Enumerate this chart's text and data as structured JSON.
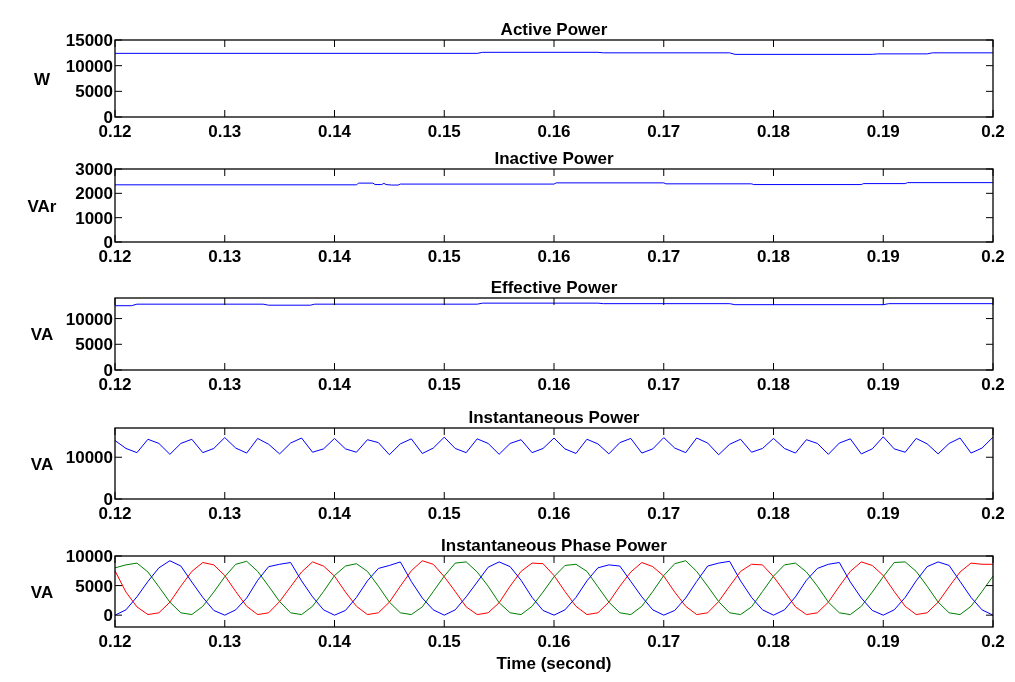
{
  "chart_data": [
    {
      "type": "line",
      "title": "Active Power",
      "ylabel": "W",
      "xlim": [
        0.12,
        0.2
      ],
      "xticks": [
        0.12,
        0.13,
        0.14,
        0.15,
        0.16,
        0.17,
        0.18,
        0.19,
        0.2
      ],
      "ylim": [
        0,
        15000
      ],
      "yticks": [
        0,
        5000,
        10000,
        15000
      ],
      "grid": false,
      "series": [
        {
          "color": "#0000ff",
          "x": [
            0.12,
            0.153,
            0.1535,
            0.164,
            0.1645,
            0.176,
            0.1765,
            0.189,
            0.1895,
            0.194,
            0.1945,
            0.2
          ],
          "values": [
            12400,
            12400,
            12600,
            12600,
            12500,
            12500,
            12200,
            12200,
            12300,
            12300,
            12500,
            12500
          ]
        }
      ]
    },
    {
      "type": "line",
      "title": "Inactive Power",
      "ylabel": "VAr",
      "xlim": [
        0.12,
        0.2
      ],
      "xticks": [
        0.12,
        0.13,
        0.14,
        0.15,
        0.16,
        0.17,
        0.18,
        0.19,
        0.2
      ],
      "ylim": [
        0,
        3000
      ],
      "yticks": [
        0,
        1000,
        2000,
        3000
      ],
      "grid": false,
      "series": [
        {
          "color": "#0000ff",
          "x": [
            0.12,
            0.142,
            0.1422,
            0.1435,
            0.1437,
            0.1443,
            0.1445,
            0.1447,
            0.1452,
            0.1458,
            0.146,
            0.16,
            0.1602,
            0.17,
            0.1702,
            0.178,
            0.1782,
            0.188,
            0.1882,
            0.192,
            0.1922,
            0.2
          ],
          "values": [
            2350,
            2350,
            2420,
            2420,
            2360,
            2360,
            2410,
            2360,
            2340,
            2340,
            2380,
            2380,
            2430,
            2430,
            2390,
            2390,
            2360,
            2360,
            2400,
            2400,
            2440,
            2440
          ]
        }
      ]
    },
    {
      "type": "line",
      "title": "Effective Power",
      "ylabel": "VA",
      "xlim": [
        0.12,
        0.2
      ],
      "xticks": [
        0.12,
        0.13,
        0.14,
        0.15,
        0.16,
        0.17,
        0.18,
        0.19,
        0.2
      ],
      "ylim": [
        0,
        14000
      ],
      "yticks": [
        0,
        5000,
        10000
      ],
      "grid": false,
      "series": [
        {
          "color": "#0000ff",
          "x": [
            0.12,
            0.1215,
            0.122,
            0.1335,
            0.134,
            0.1378,
            0.1382,
            0.153,
            0.1535,
            0.164,
            0.1645,
            0.176,
            0.1765,
            0.19,
            0.1905,
            0.2
          ],
          "values": [
            12500,
            12500,
            12800,
            12800,
            12600,
            12600,
            12800,
            12800,
            13000,
            13000,
            12900,
            12900,
            12700,
            12700,
            12900,
            12900
          ]
        }
      ]
    },
    {
      "type": "line",
      "title": "Instantaneous Power",
      "ylabel": "VA",
      "xlim": [
        0.12,
        0.2
      ],
      "xticks": [
        0.12,
        0.13,
        0.14,
        0.15,
        0.16,
        0.17,
        0.18,
        0.19,
        0.2
      ],
      "ylim": [
        0,
        17000
      ],
      "yticks": [
        0,
        10000
      ],
      "grid": false,
      "x": [
        0.12,
        0.121,
        0.122,
        0.123,
        0.124,
        0.125,
        0.126,
        0.127,
        0.128,
        0.129,
        0.13,
        0.131,
        0.132,
        0.133,
        0.134,
        0.135,
        0.136,
        0.137,
        0.138,
        0.139,
        0.14,
        0.141,
        0.142,
        0.143,
        0.144,
        0.145,
        0.146,
        0.147,
        0.148,
        0.149,
        0.15,
        0.151,
        0.152,
        0.153,
        0.154,
        0.155,
        0.156,
        0.157,
        0.158,
        0.159,
        0.16,
        0.161,
        0.162,
        0.163,
        0.164,
        0.165,
        0.166,
        0.167,
        0.168,
        0.169,
        0.17,
        0.171,
        0.172,
        0.173,
        0.174,
        0.175,
        0.176,
        0.177,
        0.178,
        0.179,
        0.18,
        0.181,
        0.182,
        0.183,
        0.184,
        0.185,
        0.186,
        0.187,
        0.188,
        0.189,
        0.19,
        0.191,
        0.192,
        0.193,
        0.194,
        0.195,
        0.196,
        0.197,
        0.198,
        0.199,
        0.2
      ],
      "series": [
        {
          "color": "#0000ff",
          "values": [
            14000,
            12100,
            11100,
            14300,
            13300,
            10700,
            13300,
            14300,
            11100,
            12100,
            14700,
            12200,
            11000,
            14500,
            13100,
            10800,
            13400,
            14600,
            11200,
            12000,
            14500,
            12000,
            11200,
            14200,
            13500,
            10600,
            13200,
            14400,
            10900,
            12200,
            14800,
            12100,
            11100,
            14400,
            13300,
            10700,
            13300,
            14200,
            11100,
            12100,
            14600,
            12000,
            10900,
            14300,
            13200,
            10800,
            13500,
            14500,
            11000,
            12000,
            14700,
            12200,
            11100,
            14600,
            13400,
            10600,
            13100,
            14300,
            11200,
            12100,
            14500,
            12100,
            11000,
            14200,
            13300,
            10700,
            13400,
            14400,
            10800,
            12000,
            14900,
            12000,
            11200,
            14500,
            13200,
            10800,
            13300,
            14600,
            11000,
            12200,
            14800
          ]
        }
      ]
    },
    {
      "type": "line",
      "title": "Instantaneous Phase Power",
      "ylabel": "VA",
      "xlabel": "Time (second)",
      "xlim": [
        0.12,
        0.2
      ],
      "xticks": [
        0.12,
        0.13,
        0.14,
        0.15,
        0.16,
        0.17,
        0.18,
        0.19,
        0.2
      ],
      "ylim": [
        -2000,
        10000
      ],
      "yticks": [
        0,
        5000,
        10000
      ],
      "grid": false,
      "x": [
        0.12,
        0.121,
        0.122,
        0.123,
        0.124,
        0.125,
        0.126,
        0.127,
        0.128,
        0.129,
        0.13,
        0.131,
        0.132,
        0.133,
        0.134,
        0.135,
        0.136,
        0.137,
        0.138,
        0.139,
        0.14,
        0.141,
        0.142,
        0.143,
        0.144,
        0.145,
        0.146,
        0.147,
        0.148,
        0.149,
        0.15,
        0.151,
        0.152,
        0.153,
        0.154,
        0.155,
        0.156,
        0.157,
        0.158,
        0.159,
        0.16,
        0.161,
        0.162,
        0.163,
        0.164,
        0.165,
        0.166,
        0.167,
        0.168,
        0.169,
        0.17,
        0.171,
        0.172,
        0.173,
        0.174,
        0.175,
        0.176,
        0.177,
        0.178,
        0.179,
        0.18,
        0.181,
        0.182,
        0.183,
        0.184,
        0.185,
        0.186,
        0.187,
        0.188,
        0.189,
        0.19,
        0.191,
        0.192,
        0.193,
        0.194,
        0.195,
        0.196,
        0.197,
        0.198,
        0.199,
        0.2
      ],
      "series": [
        {
          "color": "#ff0000",
          "values": [
            7500,
            3900,
            1400,
            100,
            400,
            2200,
            4900,
            7400,
            8900,
            8500,
            6700,
            4000,
            1500,
            100,
            400,
            2300,
            4800,
            7300,
            9000,
            8300,
            6600,
            3900,
            1500,
            100,
            400,
            2200,
            4900,
            7500,
            9200,
            8600,
            6500,
            4000,
            1400,
            100,
            400,
            2100,
            4900,
            7400,
            8800,
            8700,
            6700,
            4000,
            1500,
            100,
            400,
            2200,
            4900,
            7300,
            8900,
            8200,
            6600,
            3900,
            1500,
            100,
            400,
            2300,
            4900,
            7400,
            8600,
            8500,
            6500,
            4000,
            1400,
            100,
            400,
            2200,
            4900,
            7400,
            9000,
            8400,
            6700,
            4000,
            1500,
            100,
            400,
            2200,
            4800,
            7300,
            8800,
            8600,
            8600
          ]
        },
        {
          "color": "#008000",
          "values": [
            8000,
            8500,
            8800,
            7300,
            4800,
            2200,
            400,
            100,
            1500,
            3900,
            6500,
            8600,
            9100,
            7400,
            4900,
            2300,
            400,
            100,
            1500,
            4000,
            6700,
            8300,
            8700,
            7400,
            4900,
            2200,
            400,
            100,
            1400,
            4000,
            6600,
            8800,
            9000,
            7300,
            4900,
            2100,
            400,
            100,
            1500,
            3900,
            6500,
            8400,
            8600,
            7400,
            4800,
            2200,
            400,
            100,
            1500,
            4000,
            6700,
            8700,
            9200,
            7400,
            4900,
            2300,
            400,
            100,
            1400,
            4000,
            6600,
            8500,
            8800,
            7300,
            4900,
            2200,
            400,
            100,
            1500,
            3900,
            6500,
            8900,
            9000,
            7400,
            4900,
            2200,
            400,
            100,
            1500,
            4000,
            6600
          ]
        },
        {
          "color": "#0000ff",
          "values": [
            0,
            900,
            3100,
            5700,
            8000,
            9200,
            8300,
            5600,
            3000,
            800,
            0,
            900,
            2900,
            5900,
            8200,
            8600,
            8900,
            5800,
            3100,
            900,
            0,
            800,
            3000,
            5800,
            7900,
            8400,
            9000,
            5700,
            2900,
            900,
            0,
            900,
            3100,
            5600,
            8100,
            9000,
            8200,
            5900,
            3000,
            800,
            0,
            900,
            3000,
            5800,
            8000,
            8500,
            8300,
            5700,
            3100,
            900,
            0,
            800,
            2900,
            5700,
            8300,
            8800,
            9100,
            5800,
            3000,
            900,
            0,
            900,
            3100,
            5900,
            7900,
            8600,
            8900,
            5600,
            2900,
            800,
            0,
            900,
            3000,
            5800,
            8200,
            9000,
            8400,
            5700,
            3000,
            900,
            0
          ]
        }
      ]
    }
  ]
}
